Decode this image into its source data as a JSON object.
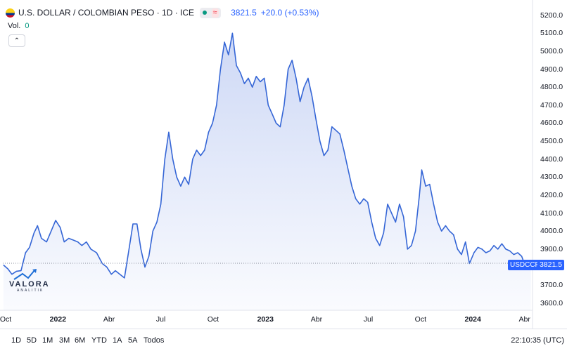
{
  "legend": {
    "title": "U.S. DOLLAR / COLOMBIAN PESO · 1D · ICE",
    "wave_glyph": "≈",
    "last": "3821.5",
    "change": "+20.0 (+0.53%)"
  },
  "volume": {
    "label": "Vol.",
    "value": "0"
  },
  "collapse_glyph": "⌃",
  "badges": {
    "symbol": "USDCCP",
    "price": "3821.5"
  },
  "timeframes": [
    "1D",
    "5D",
    "1M",
    "3M",
    "6M",
    "YTD",
    "1A",
    "5A",
    "Todos"
  ],
  "clock": "22:10:35 (UTC)",
  "logo": {
    "name": "VALORA",
    "sub": "ANALITIK"
  },
  "colors": {
    "line": "#3566d6",
    "accent": "#2962ff"
  },
  "chart_data": {
    "type": "area",
    "x_labels": [
      "Oct",
      "2022",
      "Abr",
      "Jul",
      "Oct",
      "2023",
      "Abr",
      "Jul",
      "Oct",
      "2024",
      "Abr"
    ],
    "x_labels_bold": [
      "2022",
      "2023",
      "2024"
    ],
    "y_ticks": [
      3600,
      3700,
      3800,
      3900,
      4000,
      4100,
      4200,
      4300,
      4400,
      4500,
      4600,
      4700,
      4800,
      4900,
      5000,
      5100,
      5200
    ],
    "ylim": [
      3560,
      5230
    ],
    "xlim": [
      "2021-09-26",
      "2024-04-15"
    ],
    "last_price": 3821.5,
    "series": [
      {
        "points": [
          [
            "2021-09-27",
            3812
          ],
          [
            "2021-10-05",
            3790
          ],
          [
            "2021-10-12",
            3760
          ],
          [
            "2021-10-20",
            3777
          ],
          [
            "2021-10-28",
            3780
          ],
          [
            "2021-11-05",
            3880
          ],
          [
            "2021-11-12",
            3910
          ],
          [
            "2021-11-20",
            3990
          ],
          [
            "2021-11-26",
            4030
          ],
          [
            "2021-12-03",
            3960
          ],
          [
            "2021-12-12",
            3940
          ],
          [
            "2021-12-20",
            4000
          ],
          [
            "2021-12-28",
            4060
          ],
          [
            "2022-01-05",
            4020
          ],
          [
            "2022-01-12",
            3940
          ],
          [
            "2022-01-20",
            3960
          ],
          [
            "2022-01-28",
            3950
          ],
          [
            "2022-02-05",
            3940
          ],
          [
            "2022-02-12",
            3920
          ],
          [
            "2022-02-20",
            3940
          ],
          [
            "2022-02-28",
            3900
          ],
          [
            "2022-03-10",
            3880
          ],
          [
            "2022-03-20",
            3820
          ],
          [
            "2022-03-28",
            3800
          ],
          [
            "2022-04-05",
            3760
          ],
          [
            "2022-04-12",
            3780
          ],
          [
            "2022-04-20",
            3760
          ],
          [
            "2022-04-28",
            3740
          ],
          [
            "2022-05-06",
            3900
          ],
          [
            "2022-05-13",
            4040
          ],
          [
            "2022-05-20",
            4040
          ],
          [
            "2022-05-27",
            3900
          ],
          [
            "2022-06-03",
            3800
          ],
          [
            "2022-06-10",
            3860
          ],
          [
            "2022-06-17",
            4000
          ],
          [
            "2022-06-24",
            4050
          ],
          [
            "2022-07-01",
            4150
          ],
          [
            "2022-07-08",
            4400
          ],
          [
            "2022-07-15",
            4550
          ],
          [
            "2022-07-22",
            4400
          ],
          [
            "2022-07-29",
            4300
          ],
          [
            "2022-08-05",
            4250
          ],
          [
            "2022-08-12",
            4300
          ],
          [
            "2022-08-19",
            4260
          ],
          [
            "2022-08-26",
            4400
          ],
          [
            "2022-09-02",
            4450
          ],
          [
            "2022-09-09",
            4420
          ],
          [
            "2022-09-16",
            4450
          ],
          [
            "2022-09-23",
            4550
          ],
          [
            "2022-09-30",
            4600
          ],
          [
            "2022-10-07",
            4700
          ],
          [
            "2022-10-14",
            4900
          ],
          [
            "2022-10-21",
            5050
          ],
          [
            "2022-10-28",
            4980
          ],
          [
            "2022-11-04",
            5100
          ],
          [
            "2022-11-11",
            4920
          ],
          [
            "2022-11-18",
            4880
          ],
          [
            "2022-11-25",
            4820
          ],
          [
            "2022-12-02",
            4850
          ],
          [
            "2022-12-09",
            4800
          ],
          [
            "2022-12-16",
            4860
          ],
          [
            "2022-12-23",
            4830
          ],
          [
            "2022-12-30",
            4850
          ],
          [
            "2023-01-06",
            4700
          ],
          [
            "2023-01-13",
            4650
          ],
          [
            "2023-01-20",
            4600
          ],
          [
            "2023-01-27",
            4580
          ],
          [
            "2023-02-03",
            4700
          ],
          [
            "2023-02-10",
            4900
          ],
          [
            "2023-02-17",
            4950
          ],
          [
            "2023-02-24",
            4850
          ],
          [
            "2023-03-03",
            4720
          ],
          [
            "2023-03-10",
            4800
          ],
          [
            "2023-03-17",
            4850
          ],
          [
            "2023-03-24",
            4750
          ],
          [
            "2023-03-31",
            4620
          ],
          [
            "2023-04-07",
            4500
          ],
          [
            "2023-04-14",
            4420
          ],
          [
            "2023-04-21",
            4450
          ],
          [
            "2023-04-28",
            4580
          ],
          [
            "2023-05-05",
            4560
          ],
          [
            "2023-05-12",
            4540
          ],
          [
            "2023-05-19",
            4450
          ],
          [
            "2023-05-26",
            4350
          ],
          [
            "2023-06-02",
            4250
          ],
          [
            "2023-06-09",
            4180
          ],
          [
            "2023-06-16",
            4150
          ],
          [
            "2023-06-23",
            4180
          ],
          [
            "2023-06-30",
            4160
          ],
          [
            "2023-07-07",
            4050
          ],
          [
            "2023-07-14",
            3960
          ],
          [
            "2023-07-21",
            3920
          ],
          [
            "2023-07-28",
            3990
          ],
          [
            "2023-08-04",
            4150
          ],
          [
            "2023-08-11",
            4100
          ],
          [
            "2023-08-18",
            4050
          ],
          [
            "2023-08-25",
            4150
          ],
          [
            "2023-09-01",
            4080
          ],
          [
            "2023-09-08",
            3900
          ],
          [
            "2023-09-15",
            3920
          ],
          [
            "2023-09-22",
            4000
          ],
          [
            "2023-09-29",
            4200
          ],
          [
            "2023-10-03",
            4340
          ],
          [
            "2023-10-10",
            4250
          ],
          [
            "2023-10-17",
            4260
          ],
          [
            "2023-10-24",
            4150
          ],
          [
            "2023-10-31",
            4050
          ],
          [
            "2023-11-07",
            4000
          ],
          [
            "2023-11-14",
            4030
          ],
          [
            "2023-11-21",
            4000
          ],
          [
            "2023-11-28",
            3980
          ],
          [
            "2023-12-05",
            3900
          ],
          [
            "2023-12-12",
            3870
          ],
          [
            "2023-12-19",
            3940
          ],
          [
            "2023-12-26",
            3820
          ],
          [
            "2024-01-03",
            3880
          ],
          [
            "2024-01-10",
            3910
          ],
          [
            "2024-01-17",
            3900
          ],
          [
            "2024-01-24",
            3880
          ],
          [
            "2024-01-31",
            3890
          ],
          [
            "2024-02-07",
            3920
          ],
          [
            "2024-02-14",
            3900
          ],
          [
            "2024-02-21",
            3930
          ],
          [
            "2024-02-28",
            3900
          ],
          [
            "2024-03-06",
            3890
          ],
          [
            "2024-03-13",
            3870
          ],
          [
            "2024-03-20",
            3880
          ],
          [
            "2024-03-27",
            3860
          ],
          [
            "2024-04-03",
            3800
          ],
          [
            "2024-04-08",
            3790
          ],
          [
            "2024-04-12",
            3821.5
          ]
        ]
      }
    ]
  }
}
